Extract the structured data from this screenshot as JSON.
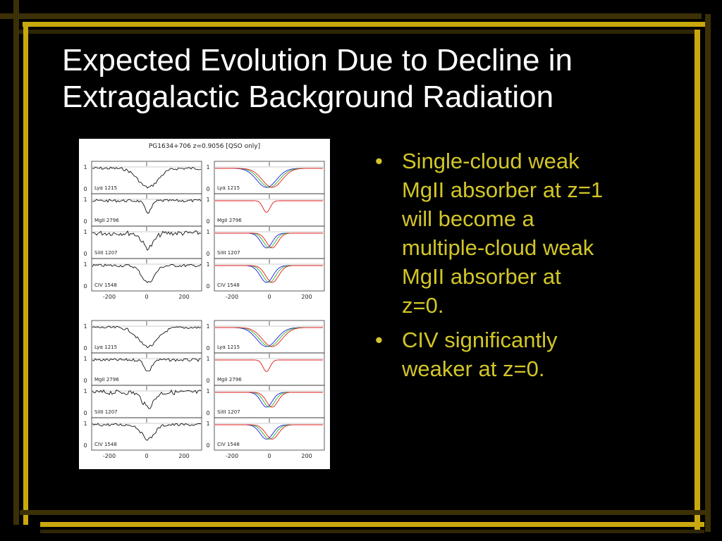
{
  "slide": {
    "title_line1": "Expected Evolution Due to Decline in",
    "title_line2": "Extragalactic Background Radiation",
    "bullet_char": "•",
    "bullets": [
      {
        "lines": [
          "Single-cloud weak",
          "MgII absorber at z=1",
          "will become a",
          "multiple-cloud weak",
          "MgII absorber at",
          "z=0."
        ]
      },
      {
        "lines": [
          "CIV significantly",
          "weaker at z=0."
        ]
      }
    ],
    "colors": {
      "background": "#000000",
      "title": "#ffffff",
      "bullet_text": "#d2c628",
      "frame_gold": "#c9a80e",
      "frame_dark": "#3c3006"
    }
  },
  "figure": {
    "header": "PG1634+706  z=0.9056  [QSO only]",
    "ion_labels": [
      "Lyα 1215",
      "MgII 2796",
      "SiIII 1207",
      "CIV 1548"
    ],
    "y_ticks": [
      "1",
      "0"
    ],
    "x_ticks": [
      "-200",
      "0",
      "200"
    ]
  }
}
